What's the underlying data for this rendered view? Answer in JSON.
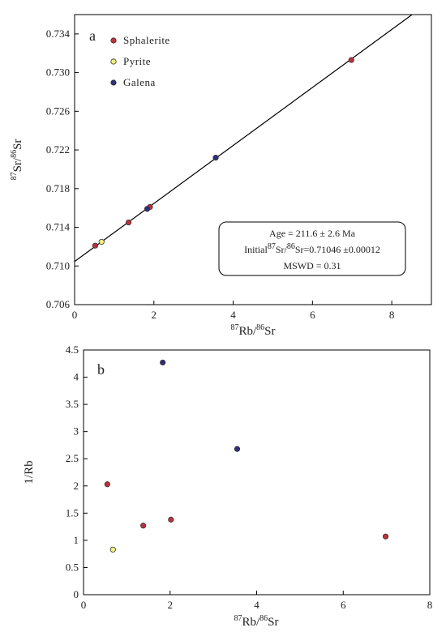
{
  "colors": {
    "sphalerite": "#c0303a",
    "pyrite": "#f2ef7a",
    "galena": "#2e2f7a",
    "axis": "#000000"
  },
  "chart_data": [
    {
      "type": "scatter",
      "panel_label": "a",
      "xlabel": "87Rb/86Sr",
      "ylabel": "87Sr/86Sr",
      "xlim": [
        0,
        9
      ],
      "ylim": [
        0.706,
        0.736
      ],
      "x_ticks": [
        "0",
        "2",
        "4",
        "6",
        "8"
      ],
      "y_ticks": [
        "0.706",
        "0.710",
        "0.714",
        "0.718",
        "0.722",
        "0.726",
        "0.730",
        "0.734"
      ],
      "legend_position": "top-left",
      "series": [
        {
          "name": "Sphalerite",
          "points": [
            [
              0.52,
              0.7121
            ],
            [
              1.36,
              0.7145
            ],
            [
              1.9,
              0.7161
            ],
            [
              6.98,
              0.7313
            ]
          ]
        },
        {
          "name": "Pyrite",
          "points": [
            [
              0.68,
              0.7125
            ]
          ]
        },
        {
          "name": "Galena",
          "points": [
            [
              1.83,
              0.7159
            ],
            [
              3.56,
              0.7212
            ]
          ]
        }
      ],
      "regression_line": {
        "intercept": 0.71046,
        "slope": 0.003
      },
      "annotation": {
        "age_line": "Age = 211.6 ± 2.6 Ma",
        "initial_prefix": "Initial",
        "initial_suffix": "=0.71046 ±0.00012",
        "mswd_line": "MSWD = 0.31"
      }
    },
    {
      "type": "scatter",
      "panel_label": "b",
      "xlabel": "87Rb/86Sr",
      "ylabel": "1/Rb",
      "xlim": [
        0,
        8
      ],
      "ylim": [
        0,
        4.5
      ],
      "x_ticks": [
        "0",
        "2",
        "4",
        "6",
        "8"
      ],
      "y_ticks": [
        "0",
        "0.5",
        "1",
        "1.5",
        "2",
        "2.5",
        "3",
        "3.5",
        "4",
        "4.5"
      ],
      "series": [
        {
          "name": "Sphalerite",
          "points": [
            [
              0.55,
              2.03
            ],
            [
              1.38,
              1.27
            ],
            [
              2.02,
              1.38
            ],
            [
              6.98,
              1.07
            ]
          ]
        },
        {
          "name": "Pyrite",
          "points": [
            [
              0.68,
              0.83
            ]
          ]
        },
        {
          "name": "Galena",
          "points": [
            [
              1.83,
              4.27
            ],
            [
              3.55,
              2.68
            ]
          ]
        }
      ]
    }
  ]
}
